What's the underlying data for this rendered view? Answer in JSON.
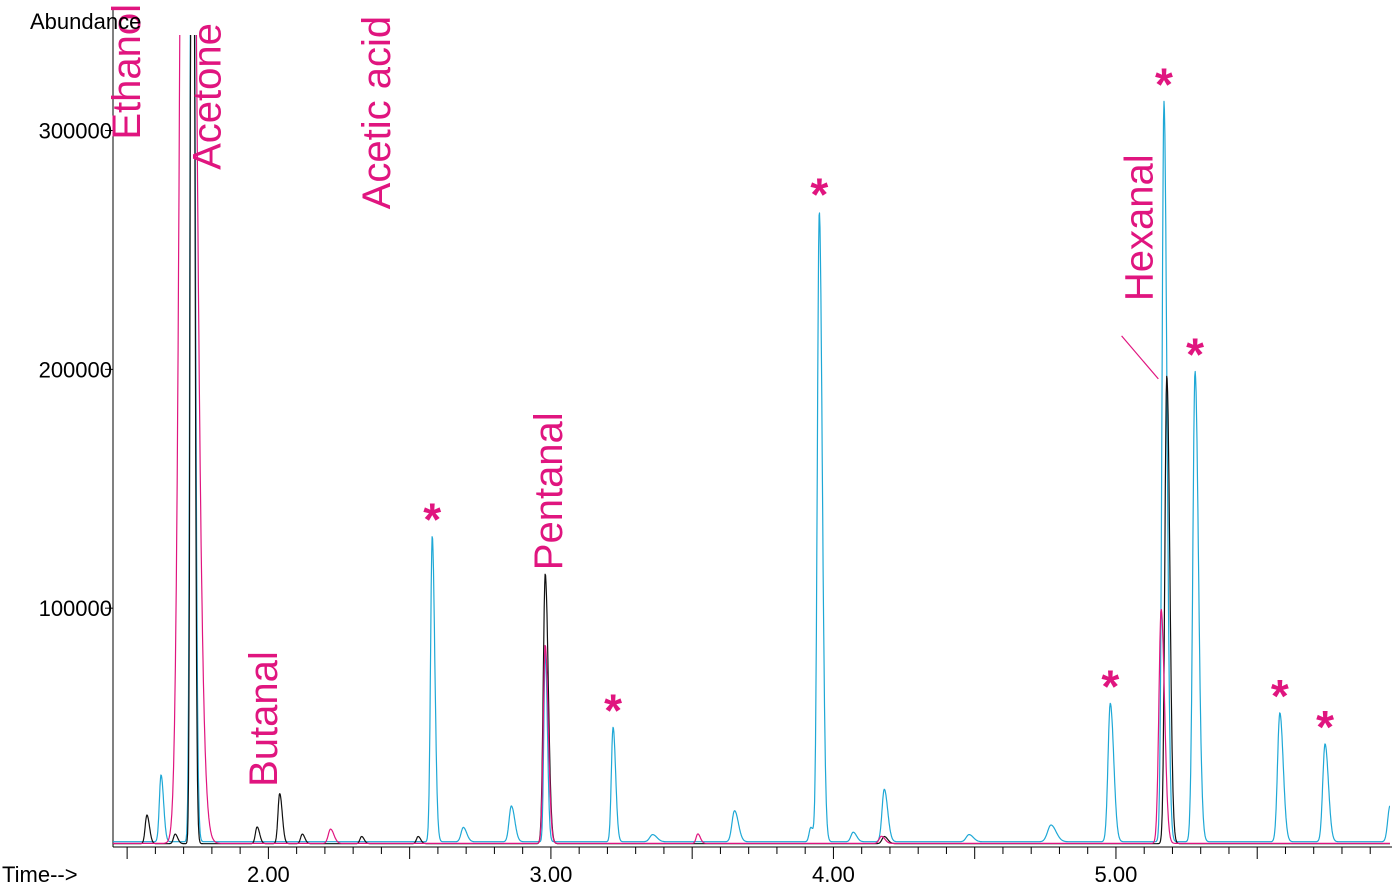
{
  "chart_data": {
    "type": "line",
    "ylabel": "Abundance",
    "xlabel": "Time-->",
    "xlim": [
      1.45,
      5.97
    ],
    "ylim": [
      0,
      340000
    ],
    "x_ticks": [
      2.0,
      3.0,
      4.0,
      5.0
    ],
    "x_tick_labels": [
      "2.00",
      "3.00",
      "4.00",
      "5.00"
    ],
    "y_ticks": [
      100000,
      200000,
      300000
    ],
    "y_tick_labels": [
      "100000",
      "200000",
      "300000"
    ],
    "grid": false,
    "legend": "none",
    "colors": {
      "cyan": "#1fa8d6",
      "black": "#111111",
      "magenta": "#e0157f",
      "annotation": "#e0157f"
    },
    "series": [
      {
        "color": "cyan",
        "baseline": 2200,
        "peaks": [
          [
            1.62,
            28000,
            0.006
          ],
          [
            1.73,
            600000,
            0.006
          ],
          [
            2.86,
            15000,
            0.008
          ],
          [
            2.69,
            6000,
            0.008
          ],
          [
            3.36,
            3000,
            0.01
          ],
          [
            2.58,
            128000,
            0.006
          ],
          [
            3.22,
            48000,
            0.006
          ],
          [
            2.98,
            80000,
            0.005
          ],
          [
            3.65,
            13000,
            0.009
          ],
          [
            3.95,
            264000,
            0.007
          ],
          [
            3.92,
            6000,
            0.006
          ],
          [
            4.07,
            4000,
            0.008
          ],
          [
            4.18,
            22000,
            0.008
          ],
          [
            4.48,
            3000,
            0.01
          ],
          [
            4.77,
            7000,
            0.012
          ],
          [
            4.98,
            58000,
            0.008
          ],
          [
            5.17,
            310000,
            0.007
          ],
          [
            5.28,
            197000,
            0.008
          ],
          [
            5.58,
            54000,
            0.008
          ],
          [
            5.74,
            41000,
            0.008
          ],
          [
            5.97,
            15000,
            0.008
          ]
        ]
      },
      {
        "color": "black",
        "baseline": 1400,
        "peaks": [
          [
            1.57,
            12000,
            0.006
          ],
          [
            1.67,
            4000,
            0.006
          ],
          [
            1.73,
            700000,
            0.005
          ],
          [
            1.96,
            7000,
            0.006
          ],
          [
            2.04,
            21000,
            0.006
          ],
          [
            2.12,
            4000,
            0.006
          ],
          [
            2.33,
            3000,
            0.006
          ],
          [
            2.53,
            3000,
            0.006
          ],
          [
            2.98,
            113000,
            0.007
          ],
          [
            4.18,
            3000,
            0.008
          ],
          [
            5.18,
            196000,
            0.007
          ]
        ]
      },
      {
        "color": "magenta",
        "baseline": 1500,
        "peaks": [
          [
            1.71,
            800000,
            0.018
          ],
          [
            2.22,
            6000,
            0.008
          ],
          [
            2.98,
            83000,
            0.007
          ],
          [
            3.52,
            4000,
            0.006
          ],
          [
            4.17,
            3000,
            0.008
          ],
          [
            5.16,
            98000,
            0.008
          ]
        ]
      }
    ],
    "annotations": [
      {
        "label": "Ethanol",
        "x": 1.545,
        "y": 353000,
        "rotate": true
      },
      {
        "label": "Acetone",
        "x": 1.83,
        "y": 345000,
        "rotate": true
      },
      {
        "label": "Acetic acid",
        "x": 2.43,
        "y": 348000,
        "rotate": true
      },
      {
        "label": "Butanal",
        "x": 2.03,
        "y": 82000,
        "rotate": true
      },
      {
        "label": "Pentanal",
        "x": 3.04,
        "y": 182000,
        "rotate": true
      },
      {
        "label": "Hexanal",
        "x": 5.13,
        "y": 290000,
        "rotate": true
      },
      {
        "label": "*",
        "x": 2.58,
        "y": 128000
      },
      {
        "label": "*",
        "x": 3.22,
        "y": 48000
      },
      {
        "label": "*",
        "x": 3.95,
        "y": 264000
      },
      {
        "label": "*",
        "x": 4.98,
        "y": 58000
      },
      {
        "label": "*",
        "x": 5.17,
        "y": 310000
      },
      {
        "label": "*",
        "x": 5.28,
        "y": 197000
      },
      {
        "label": "*",
        "x": 5.58,
        "y": 54000
      },
      {
        "label": "*",
        "x": 5.74,
        "y": 41000
      }
    ],
    "callout_line": {
      "from": [
        5.02,
        214000
      ],
      "to": [
        5.15,
        196000
      ]
    }
  }
}
